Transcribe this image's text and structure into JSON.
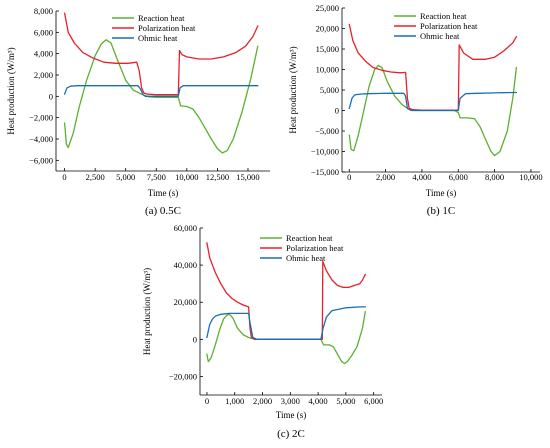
{
  "figure": {
    "colors": {
      "reaction": "#5bb030",
      "polarization": "#e8202a",
      "ohmic": "#1a6fb5"
    },
    "legend": [
      "Reaction heat",
      "Polarization heat",
      "Ohmic heat"
    ]
  },
  "chart_data": [
    {
      "type": "line",
      "caption": "(a) 0.5C",
      "xlabel": "Time (s)",
      "ylabel": "Heat production (W/m³)",
      "xlim": [
        -700,
        16800
      ],
      "ylim": [
        -7000,
        8000
      ],
      "xticks": [
        0,
        2500,
        5000,
        7500,
        10000,
        12500,
        15000
      ],
      "xtick_labels": [
        "0",
        "2,500",
        "5,000",
        "7,500",
        "10,000",
        "12,500",
        "15,000"
      ],
      "yticks": [
        -6000,
        -4000,
        -2000,
        0,
        2000,
        4000,
        6000,
        8000
      ],
      "ytick_labels": [
        "−6,000",
        "−4,000",
        "−2,000",
        "0",
        "2,000",
        "4,000",
        "6,000",
        "8,000"
      ],
      "legend_position": "top-center",
      "series": [
        {
          "name": "Reaction heat",
          "color_key": "reaction",
          "x": [
            0,
            150,
            300,
            700,
            1200,
            1800,
            2500,
            3000,
            3400,
            3800,
            4300,
            5000,
            5600,
            6100,
            6500,
            6900,
            7500,
            8200,
            8800,
            9300,
            9500,
            10000,
            10500,
            11000,
            11500,
            12000,
            12500,
            12900,
            13300,
            13800,
            14500,
            15200,
            15800
          ],
          "y": [
            -2500,
            -4500,
            -4800,
            -3500,
            -1000,
            1500,
            3800,
            4900,
            5300,
            5000,
            3500,
            1500,
            600,
            300,
            100,
            -50,
            -100,
            -100,
            -100,
            -100,
            -900,
            -950,
            -1200,
            -2000,
            -3000,
            -4000,
            -4900,
            -5300,
            -5100,
            -4000,
            -1500,
            1500,
            4700
          ]
        },
        {
          "name": "Polarization heat",
          "color_key": "polarization",
          "x": [
            0,
            300,
            800,
            1500,
            2300,
            3200,
            4200,
            5200,
            5900,
            6100,
            6300,
            6500,
            6800,
            7500,
            8200,
            8800,
            9300,
            9400,
            9600,
            10000,
            11000,
            12000,
            13000,
            14000,
            14800,
            15400,
            15800
          ],
          "y": [
            7800,
            6000,
            5000,
            4100,
            3600,
            3200,
            3100,
            3100,
            3200,
            2400,
            800,
            300,
            200,
            150,
            150,
            150,
            150,
            4300,
            3900,
            3700,
            3500,
            3500,
            3700,
            4100,
            4700,
            5600,
            6600
          ]
        },
        {
          "name": "Ohmic heat",
          "color_key": "ohmic",
          "x": [
            0,
            200,
            500,
            1000,
            2000,
            3000,
            4000,
            5000,
            6000,
            6200,
            6400,
            6600,
            7000,
            8000,
            9000,
            9300,
            9450,
            9700,
            10500,
            12000,
            13500,
            15000,
            15800
          ],
          "y": [
            200,
            800,
            950,
            1000,
            1000,
            1000,
            1000,
            1000,
            1000,
            700,
            200,
            0,
            0,
            0,
            0,
            0,
            800,
            1000,
            1000,
            1000,
            1000,
            1000,
            1000
          ]
        }
      ]
    },
    {
      "type": "line",
      "caption": "(b) 1C",
      "xlabel": "Time (s)",
      "ylabel": "Heat production (W/m³)",
      "xlim": [
        -400,
        10500
      ],
      "ylim": [
        -15000,
        25000
      ],
      "xticks": [
        0,
        2000,
        4000,
        6000,
        8000,
        10000
      ],
      "xtick_labels": [
        "0",
        "2,000",
        "4,000",
        "6,000",
        "8,000",
        "10,000"
      ],
      "yticks": [
        -15000,
        -10000,
        -5000,
        0,
        5000,
        10000,
        15000,
        20000,
        25000
      ],
      "ytick_labels": [
        "−15,000",
        "−10,000",
        "−5,000",
        "0",
        "5,000",
        "10,000",
        "15,000",
        "20,000",
        "25,000"
      ],
      "legend_position": "top-center",
      "series": [
        {
          "name": "Reaction heat",
          "color_key": "reaction",
          "x": [
            0,
            100,
            250,
            500,
            800,
            1100,
            1400,
            1600,
            1800,
            2100,
            2500,
            2900,
            3100,
            3300,
            3600,
            4200,
            5000,
            5800,
            6000,
            6100,
            6500,
            6900,
            7200,
            7500,
            7800,
            8000,
            8300,
            8700,
            9000,
            9200
          ],
          "y": [
            -6000,
            -9500,
            -9800,
            -6000,
            0,
            6000,
            10000,
            11000,
            10500,
            7000,
            3500,
            1500,
            800,
            300,
            0,
            0,
            0,
            0,
            -500,
            -1800,
            -1800,
            -2000,
            -4000,
            -7000,
            -10000,
            -11000,
            -10000,
            -5000,
            3000,
            10500
          ]
        },
        {
          "name": "Polarization heat",
          "color_key": "polarization",
          "x": [
            0,
            200,
            500,
            900,
            1300,
            1800,
            2300,
            2800,
            3100,
            3200,
            3300,
            3500,
            4000,
            5000,
            5900,
            6000,
            6050,
            6300,
            6800,
            7500,
            8000,
            8500,
            9000,
            9200
          ],
          "y": [
            21000,
            17000,
            14000,
            12000,
            10500,
            9800,
            9400,
            9200,
            9300,
            3000,
            500,
            200,
            100,
            100,
            100,
            100,
            16000,
            14000,
            12500,
            12500,
            13000,
            14500,
            16500,
            18000
          ]
        },
        {
          "name": "Ohmic heat",
          "color_key": "ohmic",
          "x": [
            0,
            150,
            300,
            600,
            1000,
            2000,
            3000,
            3100,
            3200,
            3400,
            4000,
            5000,
            5900,
            6000,
            6100,
            6400,
            7000,
            8000,
            9000,
            9200
          ],
          "y": [
            500,
            3000,
            3800,
            4000,
            4100,
            4200,
            4200,
            3500,
            500,
            0,
            0,
            0,
            0,
            0,
            3000,
            4100,
            4200,
            4300,
            4400,
            4400
          ]
        }
      ]
    },
    {
      "type": "line",
      "caption": "(c) 2C",
      "xlabel": "Time (s)",
      "ylabel": "Heat production (W/m³)",
      "xlim": [
        -250,
        6300
      ],
      "ylim": [
        -30000,
        60000
      ],
      "xticks": [
        0,
        1000,
        2000,
        3000,
        4000,
        5000,
        6000
      ],
      "xtick_labels": [
        "0",
        "1,000",
        "2,000",
        "3,000",
        "4,000",
        "5,000",
        "6,000"
      ],
      "yticks": [
        -20000,
        0,
        20000,
        40000,
        60000
      ],
      "ytick_labels": [
        "−20,000",
        "0",
        "20,000",
        "40,000",
        "60,000"
      ],
      "legend_position": "top-center",
      "series": [
        {
          "name": "Reaction heat",
          "color_key": "reaction",
          "x": [
            0,
            50,
            150,
            300,
            450,
            600,
            750,
            850,
            950,
            1100,
            1300,
            1500,
            1600,
            1800,
            2200,
            3000,
            3800,
            4100,
            4200,
            4400,
            4550,
            4700,
            4850,
            4950,
            5050,
            5200,
            5400,
            5600,
            5700
          ],
          "y": [
            -8000,
            -12000,
            -10000,
            -3000,
            5000,
            11000,
            13500,
            13000,
            11000,
            6000,
            2500,
            1000,
            500,
            0,
            0,
            0,
            0,
            0,
            -3000,
            -3000,
            -4000,
            -8000,
            -12000,
            -13000,
            -12000,
            -9000,
            -4000,
            6000,
            15000
          ]
        },
        {
          "name": "Polarization heat",
          "color_key": "polarization",
          "x": [
            0,
            100,
            300,
            500,
            700,
            900,
            1100,
            1300,
            1500,
            1550,
            1600,
            1700,
            2000,
            3000,
            4000,
            4150,
            4170,
            4300,
            4500,
            4700,
            4900,
            5100,
            5300,
            5500,
            5600,
            5700
          ],
          "y": [
            52000,
            44000,
            36000,
            30000,
            25000,
            22000,
            20000,
            18500,
            17500,
            6000,
            1000,
            0,
            0,
            0,
            0,
            0,
            42000,
            37000,
            32000,
            29000,
            28000,
            28000,
            29000,
            30000,
            32000,
            35000
          ]
        },
        {
          "name": "Ohmic heat",
          "color_key": "ohmic",
          "x": [
            0,
            100,
            200,
            300,
            500,
            800,
            1200,
            1500,
            1550,
            1650,
            1800,
            2500,
            3500,
            4100,
            4180,
            4300,
            4500,
            5000,
            5500,
            5700
          ],
          "y": [
            1000,
            8000,
            11000,
            12500,
            13500,
            14000,
            14000,
            14000,
            9000,
            1000,
            0,
            0,
            0,
            0,
            6000,
            12000,
            15500,
            17000,
            17500,
            17500
          ]
        }
      ]
    }
  ]
}
